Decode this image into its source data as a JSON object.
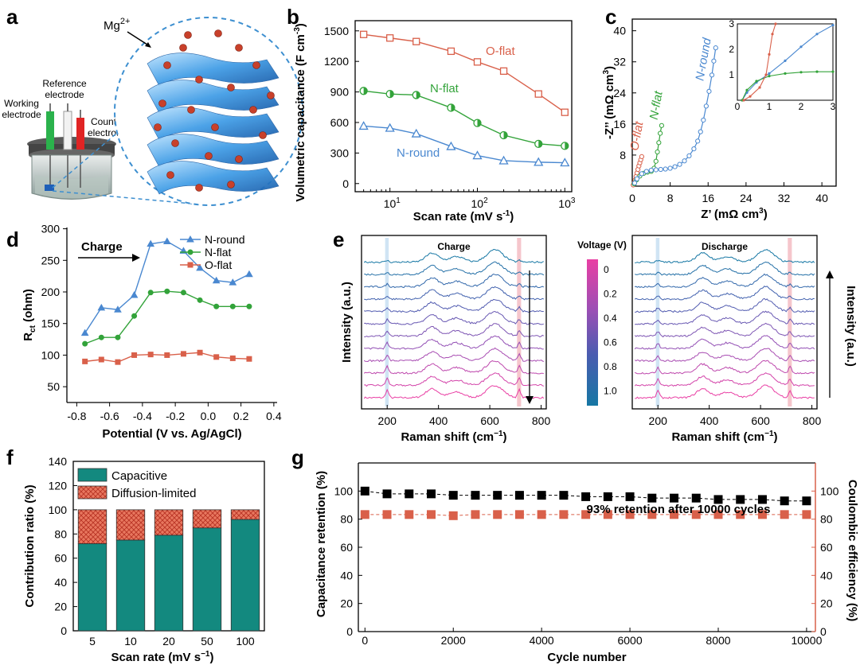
{
  "colors": {
    "red": "#d9604a",
    "green": "#33a33a",
    "blue": "#4a88d0",
    "teal": "#13897f",
    "hatch": "#d24b3e",
    "black": "#000000"
  },
  "panel_a": {
    "label": "a",
    "ion_label": "Mg",
    "ion_sup": "2+",
    "labels": {
      "reference": [
        "Reference",
        "electrode"
      ],
      "working": [
        "Working",
        "electrode"
      ],
      "counter": [
        "Counter",
        "electrode"
      ]
    }
  },
  "chart_data": [
    {
      "panel": "b",
      "type": "line",
      "x_scale": "log",
      "xlabel": "Scan rate (mV s",
      "xlabel_sup": "-1",
      "xlabel_end": ")",
      "ylabel": "Volumetric capacitance (F cm",
      "ylabel_sup": "-3",
      "ylabel_end": ")",
      "xlim": [
        4,
        1200
      ],
      "ylim": [
        -80,
        1600
      ],
      "yticks": [
        0,
        300,
        600,
        900,
        1200,
        1500
      ],
      "xticks": [
        {
          "v": 10,
          "b": "10",
          "e": "1"
        },
        {
          "v": 100,
          "b": "10",
          "e": "2"
        },
        {
          "v": 1000,
          "b": "10",
          "e": "3"
        }
      ],
      "x": [
        5,
        10,
        20,
        50,
        100,
        200,
        500,
        1000
      ],
      "series": [
        {
          "name": "O-flat",
          "color": "red",
          "marker": "square",
          "values": [
            1465,
            1430,
            1395,
            1300,
            1195,
            1105,
            880,
            700
          ]
        },
        {
          "name": "N-flat",
          "color": "green",
          "marker": "circle-half",
          "values": [
            910,
            880,
            870,
            745,
            595,
            475,
            390,
            370
          ]
        },
        {
          "name": "N-round",
          "color": "blue",
          "marker": "triangle",
          "values": [
            565,
            545,
            490,
            365,
            275,
            225,
            210,
            205
          ]
        }
      ]
    },
    {
      "panel": "c",
      "type": "scatter",
      "xlabel": "Z’ (mΩ cm",
      "xlabel_sup": "3",
      "xlabel_end": ")",
      "ylabel": "-Z’’ (mΩ cm",
      "ylabel_sup": "3",
      "ylabel_end": ")",
      "xlim": [
        0,
        43
      ],
      "ylim": [
        0,
        43
      ],
      "xticks": [
        0,
        8,
        16,
        24,
        32,
        40
      ],
      "yticks": [
        8,
        16,
        24,
        32,
        40
      ],
      "series": [
        {
          "name": "O-flat",
          "color": "red",
          "x": [
            0.2,
            0.4,
            0.6,
            0.8,
            1.0,
            1.2,
            1.4,
            1.6,
            1.8,
            2.0
          ],
          "y": [
            0.3,
            0.8,
            1.6,
            2.5,
            3.4,
            4.3,
            5.2,
            6.0,
            6.8,
            7.6
          ]
        },
        {
          "name": "N-flat",
          "color": "green",
          "x": [
            0.4,
            0.9,
            1.6,
            2.4,
            3.2,
            4.0,
            4.6,
            5.0,
            5.3,
            5.6,
            5.9,
            6.2
          ],
          "y": [
            0.6,
            1.6,
            2.6,
            3.3,
            3.6,
            3.8,
            4.6,
            6.4,
            8.8,
            11.2,
            13.6,
            15.6
          ]
        },
        {
          "name": "N-round",
          "color": "blue",
          "x": [
            0.5,
            1.0,
            2.0,
            3.0,
            4.0,
            5.0,
            6.0,
            7.0,
            8.0,
            9.0,
            10.0,
            11.0,
            12.0,
            13.0,
            13.8,
            14.4,
            15.0,
            15.6,
            16.2,
            16.8,
            17.2,
            17.6
          ],
          "y": [
            0.8,
            1.9,
            3.2,
            3.8,
            4.1,
            4.2,
            4.3,
            4.4,
            4.6,
            5.0,
            5.6,
            6.5,
            7.8,
            9.6,
            11.6,
            14.0,
            17.0,
            20.6,
            24.4,
            28.6,
            32.2,
            35.6
          ]
        }
      ],
      "inset": {
        "xlim": [
          0,
          3
        ],
        "ylim": [
          0,
          3
        ],
        "xticks": [
          0,
          1,
          2,
          3
        ],
        "yticks": [
          0,
          1,
          2,
          3
        ]
      }
    },
    {
      "panel": "d",
      "type": "line",
      "xlabel": "Potential (V vs. Ag/AgCl)",
      "ylabel": "R",
      "ylabel_sub": "ct",
      "ylabel_end": " (ohm)",
      "xlim": [
        -0.86,
        0.42
      ],
      "ylim": [
        25,
        302
      ],
      "xticks": [
        -0.8,
        -0.6,
        -0.4,
        -0.2,
        0.0,
        0.2,
        0.4
      ],
      "yticks": [
        50,
        100,
        150,
        200,
        250,
        300
      ],
      "x": [
        -0.75,
        -0.65,
        -0.55,
        -0.45,
        -0.35,
        -0.25,
        -0.15,
        -0.05,
        0.05,
        0.15,
        0.25
      ],
      "arrow_text": "Charge",
      "legend": "top-right",
      "series": [
        {
          "name": "N-round",
          "color": "blue",
          "marker": "triangle",
          "values": [
            135,
            175,
            172,
            195,
            276,
            280,
            265,
            238,
            218,
            215,
            228
          ]
        },
        {
          "name": "N-flat",
          "color": "green",
          "marker": "circle",
          "values": [
            118,
            128,
            128,
            162,
            199,
            201,
            199,
            187,
            177,
            177,
            177
          ]
        },
        {
          "name": "O-flat",
          "color": "red",
          "marker": "square",
          "values": [
            90,
            93,
            89,
            100,
            101,
            100,
            102,
            104,
            97,
            95,
            94
          ]
        }
      ]
    },
    {
      "panel": "e",
      "type": "line",
      "xlabel": "Raman shift (cm",
      "xlabel_sup": "−1",
      "xlabel_end": ")",
      "ylabel": "Intensity (a.u.)",
      "xlim": [
        100,
        820
      ],
      "xticks": [
        200,
        400,
        600,
        800
      ],
      "subplots": [
        {
          "title": "Charge"
        },
        {
          "title": "Discharge"
        }
      ],
      "colorbar": {
        "title": "Voltage (V)",
        "ticks": [
          "0",
          "0.2",
          "0.4",
          "0.6",
          "0.8",
          "1.0"
        ]
      }
    },
    {
      "panel": "f",
      "type": "bar",
      "stacked": true,
      "categories": [
        "5",
        "10",
        "20",
        "50",
        "100"
      ],
      "xlabel": "Scan rate (mV s",
      "xlabel_sup": "−1",
      "xlabel_end": ")",
      "ylabel": "Contribution ratio (%)",
      "ylim": [
        0,
        140
      ],
      "yticks": [
        0,
        20,
        40,
        60,
        80,
        100,
        120,
        140
      ],
      "legend": "top-left",
      "series": [
        {
          "name": "Capacitive",
          "color": "teal",
          "values": [
            72,
            75,
            79,
            85,
            92
          ]
        },
        {
          "name": "Diffusion-limited",
          "color": "hatch",
          "values": [
            28,
            25,
            21,
            15,
            8
          ]
        }
      ]
    },
    {
      "panel": "g",
      "type": "scatter",
      "xlabel": "Cycle number",
      "ylabel": "Capacitance retention (%)",
      "ylabel_right": "Coulombic efficiency (%)",
      "xlim": [
        -150,
        10200
      ],
      "ylim": [
        0,
        120
      ],
      "xticks": [
        0,
        2000,
        4000,
        6000,
        8000,
        10000
      ],
      "yticks": [
        0,
        20,
        40,
        60,
        80,
        100
      ],
      "annotation": "93% retention after 10000 cycles",
      "series": [
        {
          "name": "Capacitance retention",
          "color": "black",
          "x": [
            0,
            500,
            1000,
            1500,
            2000,
            2500,
            3000,
            3500,
            4000,
            4500,
            5000,
            5500,
            6000,
            6500,
            7000,
            7500,
            8000,
            8500,
            9000,
            9500,
            10000
          ],
          "values": [
            100,
            98,
            98,
            98,
            97,
            97,
            97,
            97,
            97,
            97,
            96,
            96,
            96,
            95,
            95,
            95,
            94,
            94,
            94,
            93,
            93
          ]
        },
        {
          "name": "Coulombic efficiency",
          "color": "red",
          "x": [
            0,
            500,
            1000,
            1500,
            2000,
            2500,
            3000,
            3500,
            4000,
            4500,
            5000,
            5500,
            6000,
            6500,
            7000,
            7500,
            8000,
            8500,
            9000,
            9500,
            10000
          ],
          "values": [
            100,
            100,
            100,
            100,
            99,
            100,
            100,
            100,
            100,
            100,
            100,
            100,
            100,
            100,
            100,
            100,
            100,
            100,
            100,
            100,
            100
          ]
        }
      ]
    }
  ]
}
